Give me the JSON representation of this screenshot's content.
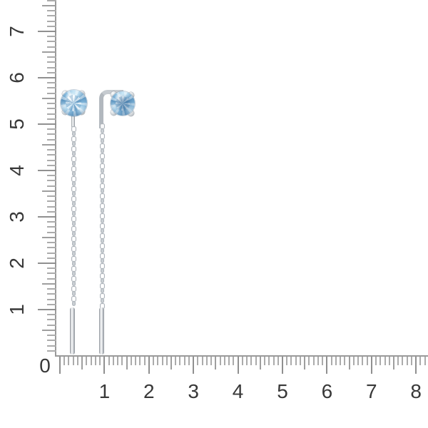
{
  "product": {
    "description": "Pair of silver threader earrings with round light-blue gemstones in four-prong settings, each with a hanging cable chain ending in a slim bar, photographed on a white background behind centimeter rulers",
    "gem_colors": {
      "light": "#c9e6f6",
      "mid": "#8cbfe1",
      "deep": "#5f98c3"
    },
    "metal_colors": {
      "light": "#f2f4f5",
      "mid": "#c3c8cd",
      "dark": "#8f969d"
    }
  },
  "rulers": {
    "origin_label": "0",
    "vertical_labels": [
      "7",
      "6",
      "5",
      "4",
      "3",
      "2",
      "1"
    ],
    "horizontal_labels": [
      "1",
      "2",
      "3",
      "4",
      "5",
      "6",
      "7",
      "8"
    ],
    "number_color": "#383838",
    "tick_colors": {
      "major": "#909090",
      "medium": "#9e9e9e",
      "minor": "#ababab",
      "line": "#9a9a9a"
    }
  }
}
